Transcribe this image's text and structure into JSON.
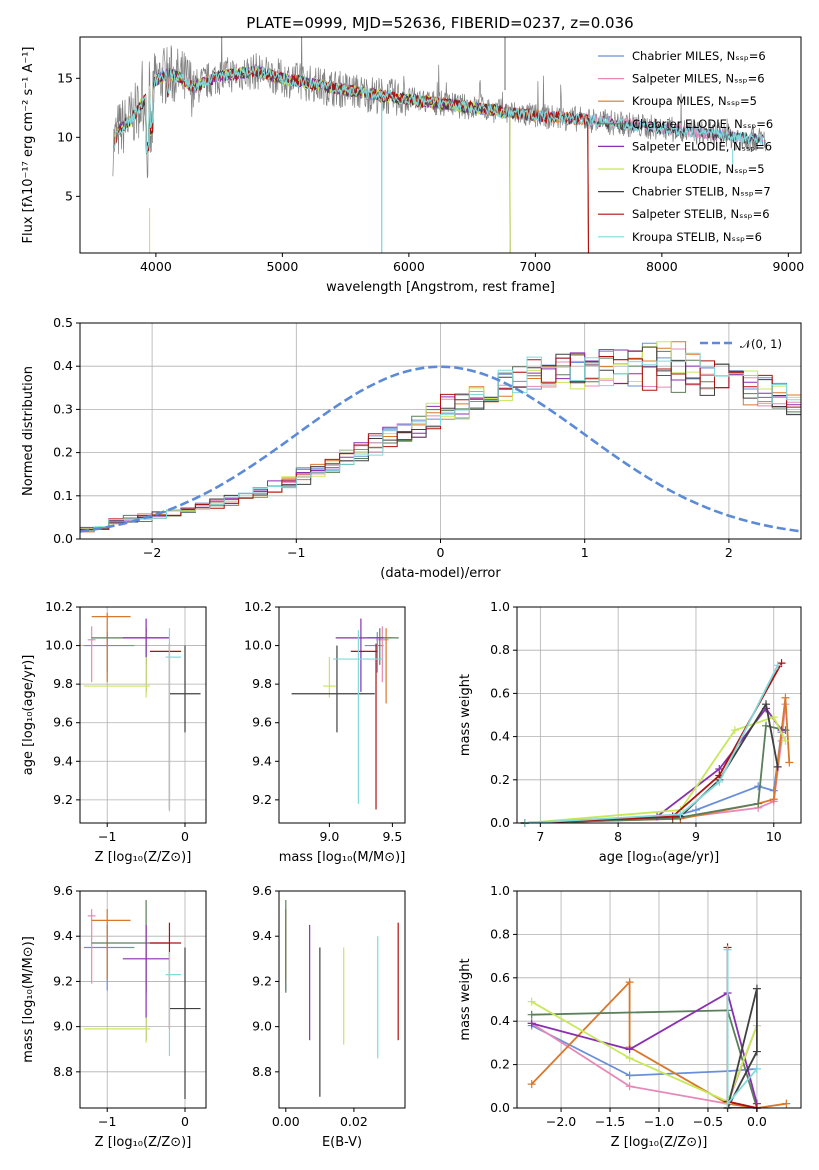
{
  "title": "PLATE=0999, MJD=52636, FIBERID=0237, z=0.036",
  "colors": [
    "#6a8fd8",
    "#e888b8",
    "#d9782a",
    "#5a7f5a",
    "#8a2fb0",
    "#c8e85a",
    "#404040",
    "#b01010",
    "#80dada"
  ],
  "panels": {
    "spectrum": {
      "xlabel": "wavelength [Angstrom, rest frame]",
      "ylabel": "Flux [fλ10⁻¹⁷ erg cm⁻² s⁻¹ A⁻¹]",
      "xticks": [
        "4000",
        "5000",
        "6000",
        "7000",
        "8000",
        "9000"
      ],
      "yticks": [
        "5",
        "10",
        "15"
      ]
    },
    "residuals": {
      "xlabel": "(data-model)/error",
      "ylabel": "Normed distribution",
      "xticks": [
        "−2",
        "−1",
        "0",
        "1",
        "2"
      ],
      "yticks": [
        "0.0",
        "0.1",
        "0.2",
        "0.3",
        "0.4",
        "0.5"
      ],
      "legend": "𝒩(0, 1)"
    },
    "age_z": {
      "xlabel": "Z [log₁₀(Z/Z⊙)]",
      "ylabel": "age  [log₁₀(age/yr)]",
      "xticks": [
        "−1",
        "0"
      ],
      "yticks": [
        "9.2",
        "9.4",
        "9.6",
        "9.8",
        "10.0",
        "10.2"
      ]
    },
    "age_mass": {
      "xlabel": "mass [log₁₀(M/M⊙)]",
      "xticks": [
        "9.0",
        "9.5"
      ],
      "yticks": [
        "9.2",
        "9.4",
        "9.6",
        "9.8",
        "10.0",
        "10.2"
      ]
    },
    "mw_age": {
      "xlabel": "age  [log₁₀(age/yr)]",
      "ylabel": "mass weight",
      "xticks": [
        "7",
        "8",
        "9",
        "10"
      ],
      "yticks": [
        "0.0",
        "0.2",
        "0.4",
        "0.6",
        "0.8",
        "1.0"
      ]
    },
    "mass_z": {
      "xlabel": "Z [log₁₀(Z/Z⊙)]",
      "ylabel": "mass [log₁₀(M/M⊙)]",
      "xticks": [
        "−1",
        "0"
      ],
      "yticks": [
        "8.8",
        "9.0",
        "9.2",
        "9.4",
        "9.6"
      ]
    },
    "mass_ebv": {
      "xlabel": "E(B-V)",
      "xticks": [
        "0.00",
        "0.02"
      ],
      "yticks": [
        "8.8",
        "9.0",
        "9.2",
        "9.4",
        "9.6"
      ]
    },
    "mw_z": {
      "xlabel": "Z [log₁₀(Z/Z⊙)]",
      "ylabel": "mass weight",
      "xticks": [
        "−2.0",
        "−1.5",
        "−1.0",
        "−0.5",
        "0.0"
      ],
      "yticks": [
        "0.0",
        "0.2",
        "0.4",
        "0.6",
        "0.8",
        "1.0"
      ]
    }
  },
  "chart_data": [
    {
      "type": "line",
      "title": "PLATE=0999, MJD=52636, FIBERID=0237, z=0.036",
      "xlabel": "wavelength [Angstrom, rest frame]",
      "ylabel": "Flux [fλ10⁻¹⁷ erg cm⁻² s⁻¹ A⁻¹]",
      "xlim": [
        3400,
        9100
      ],
      "ylim": [
        0.2,
        18.5
      ],
      "legend_position": "top-right",
      "series": [
        {
          "name": "Chabrier MILES, N_SSP=6",
          "end_x": 8800
        },
        {
          "name": "Salpeter MILES, N_SSP=6",
          "end_x": 8800
        },
        {
          "name": "Kroupa MILES, N_SSP=5",
          "end_x": 7420
        },
        {
          "name": "Chabrier ELODIE, N_SSP=6",
          "end_x": 6800
        },
        {
          "name": "Salpeter ELODIE, N_SSP=6",
          "end_x": 6800
        },
        {
          "name": "Kroupa ELODIE, N_SSP=5",
          "end_x": 6800
        },
        {
          "name": "Chabrier STELIB, N_SSP=7",
          "end_x": 8800
        },
        {
          "name": "Salpeter STELIB, N_SSP=6",
          "end_x": 7420
        },
        {
          "name": "Kroupa STELIB, N_SSP=6",
          "end_x": 8800
        }
      ],
      "continuum_x": [
        3650,
        3700,
        3800,
        3900,
        4000,
        4100,
        4200,
        4300,
        4500,
        4800,
        5000,
        5200,
        5500,
        5800,
        6000,
        6300,
        6600,
        7000,
        7400,
        7800,
        8200,
        8600,
        8800
      ],
      "continuum_y": [
        9.0,
        10.5,
        11.5,
        13.0,
        14.8,
        15.4,
        15.0,
        14.2,
        15.2,
        15.6,
        15.0,
        14.6,
        14.0,
        13.5,
        13.2,
        12.8,
        12.4,
        11.8,
        11.5,
        11.0,
        10.5,
        10.0,
        9.8
      ]
    },
    {
      "type": "histogram",
      "xlabel": "(data-model)/error",
      "ylabel": "Normed distribution",
      "xlim": [
        -2.5,
        2.5
      ],
      "ylim": [
        0,
        0.5
      ],
      "grid": true,
      "legend_position": "top-right",
      "bin_width": 0.1,
      "bin_start": -2.5,
      "mean_heights": [
        0.025,
        0.03,
        0.04,
        0.045,
        0.05,
        0.055,
        0.06,
        0.07,
        0.075,
        0.085,
        0.09,
        0.1,
        0.11,
        0.12,
        0.13,
        0.145,
        0.16,
        0.17,
        0.19,
        0.205,
        0.22,
        0.235,
        0.25,
        0.26,
        0.28,
        0.3,
        0.31,
        0.33,
        0.35,
        0.36,
        0.37,
        0.38,
        0.385,
        0.39,
        0.39,
        0.395,
        0.395,
        0.4,
        0.4,
        0.395,
        0.39,
        0.39,
        0.385,
        0.375,
        0.37,
        0.36,
        0.35,
        0.34,
        0.33,
        0.31,
        0.3,
        0.28,
        0.26,
        0.25,
        0.235,
        0.22,
        0.2,
        0.19,
        0.175,
        0.16,
        0.145,
        0.13,
        0.12,
        0.11,
        0.1,
        0.09,
        0.08,
        0.07,
        0.065,
        0.055,
        0.05,
        0.045,
        0.04,
        0.035,
        0.03,
        0.03,
        0.025,
        0.025,
        0.025,
        0.02
      ],
      "normal_curve": {
        "name": "𝒩(0, 1)",
        "mean": 0,
        "sigma": 1
      }
    },
    {
      "type": "errorbar",
      "xlabel": "Z [log₁₀(Z/Z⊙)]",
      "ylabel": "age  [log₁₀(age/yr)]",
      "xlim": [
        -1.35,
        0.27
      ],
      "ylim": [
        9.08,
        10.2
      ],
      "points": [
        {
          "x": -1.0,
          "xerr": [
            0.3,
            0.35
          ],
          "y": 10.0,
          "yerr": [
            0.14,
            0.07
          ]
        },
        {
          "x": -1.2,
          "xerr": [
            0.05,
            0.05
          ],
          "y": 10.03,
          "yerr": [
            0.22,
            0.07
          ]
        },
        {
          "x": -1.0,
          "xerr": [
            0.2,
            0.3
          ],
          "y": 10.15,
          "yerr": [
            0.34,
            0.02
          ]
        },
        {
          "x": -0.5,
          "xerr": [
            0.7,
            0.3
          ],
          "y": 10.04,
          "yerr": [
            0.14,
            0.05
          ]
        },
        {
          "x": -0.5,
          "xerr": [
            0.3,
            0.3
          ],
          "y": 10.04,
          "yerr": [
            0.28,
            0.1
          ]
        },
        {
          "x": -0.5,
          "xerr": [
            0.8,
            0.05
          ],
          "y": 9.79,
          "yerr": [
            0.06,
            0.15
          ]
        },
        {
          "x": 0.0,
          "xerr": [
            0.2,
            0.2
          ],
          "y": 9.75,
          "yerr": [
            0.2,
            0.25
          ]
        },
        {
          "x": -0.2,
          "xerr": [
            0.25,
            0.15
          ],
          "y": 9.97,
          "yerr": [
            0.82,
            0.04
          ]
        },
        {
          "x": -0.2,
          "xerr": [
            0.05,
            0.15
          ],
          "y": 9.94,
          "yerr": [
            0.8,
            0.15
          ]
        }
      ]
    },
    {
      "type": "errorbar",
      "xlabel": "mass [log₁₀(M/M⊙)]",
      "xlim": [
        8.6,
        9.6
      ],
      "ylim": [
        9.08,
        10.2
      ],
      "points": [
        {
          "x": 9.38,
          "xerr": [
            0.1,
            0.05
          ],
          "y": 10.0,
          "yerr": [
            0.14,
            0.07
          ]
        },
        {
          "x": 9.42,
          "xerr": [
            0.05,
            0.05
          ],
          "y": 10.03,
          "yerr": [
            0.22,
            0.07
          ]
        },
        {
          "x": 9.45,
          "xerr": [
            0.08,
            0.04
          ],
          "y": 10.04,
          "yerr": [
            0.34,
            0.05
          ]
        },
        {
          "x": 9.4,
          "xerr": [
            0.1,
            0.15
          ],
          "y": 10.04,
          "yerr": [
            0.14,
            0.05
          ]
        },
        {
          "x": 9.25,
          "xerr": [
            0.2,
            0.18
          ],
          "y": 10.04,
          "yerr": [
            0.28,
            0.1
          ]
        },
        {
          "x": 9.0,
          "xerr": [
            0.05,
            0.05
          ],
          "y": 9.79,
          "yerr": [
            0.06,
            0.15
          ]
        },
        {
          "x": 9.06,
          "xerr": [
            0.36,
            0.3
          ],
          "y": 9.75,
          "yerr": [
            0.2,
            0.25
          ]
        },
        {
          "x": 9.37,
          "xerr": [
            0.2,
            0.01
          ],
          "y": 9.97,
          "yerr": [
            0.82,
            0.04
          ]
        },
        {
          "x": 9.23,
          "xerr": [
            0.2,
            0.2
          ],
          "y": 9.93,
          "yerr": [
            0.75,
            0.15
          ]
        }
      ]
    },
    {
      "type": "line",
      "xlabel": "age  [log₁₀(age/yr)]",
      "ylabel": "mass weight",
      "xlim": [
        6.7,
        10.35
      ],
      "ylim": [
        0,
        1
      ],
      "grid": true,
      "series": [
        {
          "x": [
            6.8,
            8.7,
            9.0,
            9.8,
            10.0,
            10.1
          ],
          "y": [
            0.0,
            0.03,
            0.06,
            0.17,
            0.15,
            0.42
          ]
        },
        {
          "x": [
            6.8,
            8.7,
            9.8,
            10.0,
            10.1,
            10.15
          ],
          "y": [
            0.0,
            0.02,
            0.07,
            0.1,
            0.38,
            0.55
          ]
        },
        {
          "x": [
            6.8,
            8.8,
            9.8,
            10.0,
            10.15,
            10.2
          ],
          "y": [
            0.0,
            0.02,
            0.09,
            0.11,
            0.58,
            0.28
          ]
        },
        {
          "x": [
            6.8,
            8.7,
            9.8,
            9.9,
            10.15
          ],
          "y": [
            0.0,
            0.02,
            0.09,
            0.45,
            0.43
          ]
        },
        {
          "x": [
            6.8,
            8.5,
            9.3,
            9.9,
            10.1
          ],
          "y": [
            0.0,
            0.03,
            0.25,
            0.53,
            0.43
          ]
        },
        {
          "x": [
            6.8,
            8.8,
            9.5,
            10.0,
            10.15
          ],
          "y": [
            0.0,
            0.06,
            0.43,
            0.49,
            0.38
          ]
        },
        {
          "x": [
            6.8,
            8.8,
            9.3,
            9.9,
            10.05
          ],
          "y": [
            0.0,
            0.03,
            0.2,
            0.55,
            0.26
          ]
        },
        {
          "x": [
            6.8,
            8.7,
            9.3,
            10.1
          ],
          "y": [
            0.0,
            0.03,
            0.22,
            0.74
          ]
        },
        {
          "x": [
            6.8,
            8.8,
            9.3,
            10.05
          ],
          "y": [
            0.0,
            0.04,
            0.19,
            0.73
          ]
        }
      ]
    },
    {
      "type": "errorbar",
      "xlabel": "Z [log₁₀(Z/Z⊙)]",
      "ylabel": "mass [log₁₀(M/M⊙)]",
      "xlim": [
        -1.35,
        0.27
      ],
      "ylim": [
        8.64,
        9.6
      ],
      "points": [
        {
          "x": -1.0,
          "xerr": [
            0.3,
            0.35
          ],
          "y": 9.35,
          "yerr": [
            0.19,
            0.1
          ]
        },
        {
          "x": -1.2,
          "xerr": [
            0.05,
            0.05
          ],
          "y": 9.49,
          "yerr": [
            0.3,
            0.03
          ]
        },
        {
          "x": -1.0,
          "xerr": [
            0.2,
            0.3
          ],
          "y": 9.47,
          "yerr": [
            0.26,
            0.05
          ]
        },
        {
          "x": -0.5,
          "xerr": [
            0.7,
            0.3
          ],
          "y": 9.37,
          "yerr": [
            0.22,
            0.19
          ]
        },
        {
          "x": -0.5,
          "xerr": [
            0.3,
            0.3
          ],
          "y": 9.3,
          "yerr": [
            0.36,
            0.15
          ]
        },
        {
          "x": -0.5,
          "xerr": [
            0.8,
            0.05
          ],
          "y": 8.99,
          "yerr": [
            0.06,
            0.05
          ]
        },
        {
          "x": 0.0,
          "xerr": [
            0.2,
            0.2
          ],
          "y": 9.08,
          "yerr": [
            0.4,
            0.27
          ]
        },
        {
          "x": -0.2,
          "xerr": [
            0.25,
            0.15
          ],
          "y": 9.37,
          "yerr": [
            0.38,
            0.09
          ]
        },
        {
          "x": -0.2,
          "xerr": [
            0.05,
            0.15
          ],
          "y": 9.23,
          "yerr": [
            0.36,
            0.1
          ]
        }
      ]
    },
    {
      "type": "errorbar",
      "xlabel": "E(B-V)",
      "xlim": [
        -0.002,
        0.035
      ],
      "ylim": [
        8.64,
        9.6
      ],
      "points": [
        {
          "x": 0.0,
          "y": 9.35,
          "yerr": [
            0.19,
            0.1
          ]
        },
        {
          "x": 0.0,
          "y": 9.49,
          "yerr": [
            0.3,
            0.03
          ]
        },
        {
          "x": 0.0,
          "y": 9.47,
          "yerr": [
            0.26,
            0.05
          ]
        },
        {
          "x": 0.0,
          "y": 9.37,
          "yerr": [
            0.22,
            0.19
          ]
        },
        {
          "x": 0.007,
          "y": 9.2,
          "yerr": [
            0.26,
            0.25
          ]
        },
        {
          "x": 0.017,
          "y": 9.13,
          "yerr": [
            0.21,
            0.22
          ]
        },
        {
          "x": 0.01,
          "y": 9.02,
          "yerr": [
            0.33,
            0.33
          ]
        },
        {
          "x": 0.033,
          "y": 9.2,
          "yerr": [
            0.26,
            0.26
          ]
        },
        {
          "x": 0.027,
          "y": 9.13,
          "yerr": [
            0.27,
            0.27
          ]
        }
      ]
    },
    {
      "type": "line",
      "xlabel": "Z [log₁₀(Z/Z⊙)]",
      "ylabel": "mass weight",
      "xlim": [
        -2.45,
        0.45
      ],
      "ylim": [
        0,
        1
      ],
      "grid": true,
      "series": [
        {
          "x": [
            -2.3,
            -1.3,
            -0.3,
            0.0
          ],
          "y": [
            0.38,
            0.15,
            0.17,
            0.18
          ]
        },
        {
          "x": [
            -2.3,
            -1.3,
            -0.3,
            0.0
          ],
          "y": [
            0.39,
            0.1,
            0.02,
            0.38
          ]
        },
        {
          "x": [
            -2.3,
            -1.3,
            -1.3,
            -0.3,
            0.0,
            0.3
          ],
          "y": [
            0.11,
            0.58,
            0.28,
            0.02,
            0.0,
            0.02
          ]
        },
        {
          "x": [
            -2.3,
            -0.3,
            0.0
          ],
          "y": [
            0.43,
            0.45,
            0.0
          ]
        },
        {
          "x": [
            -2.3,
            -1.3,
            -0.3,
            0.0
          ],
          "y": [
            0.39,
            0.27,
            0.53,
            0.02
          ]
        },
        {
          "x": [
            -2.3,
            -1.3,
            -0.3,
            0.0
          ],
          "y": [
            0.49,
            0.23,
            0.03,
            0.38
          ]
        },
        {
          "x": [
            -0.3,
            0.0,
            0.0,
            -0.3,
            0.0
          ],
          "y": [
            0.0,
            0.26,
            0.55,
            0.0,
            0.0
          ]
        },
        {
          "x": [
            -0.3,
            -0.3,
            0.0
          ],
          "y": [
            0.74,
            0.03,
            0.0
          ]
        },
        {
          "x": [
            -0.3,
            -0.3,
            0.0
          ],
          "y": [
            0.73,
            0.02,
            0.18
          ]
        }
      ]
    }
  ]
}
